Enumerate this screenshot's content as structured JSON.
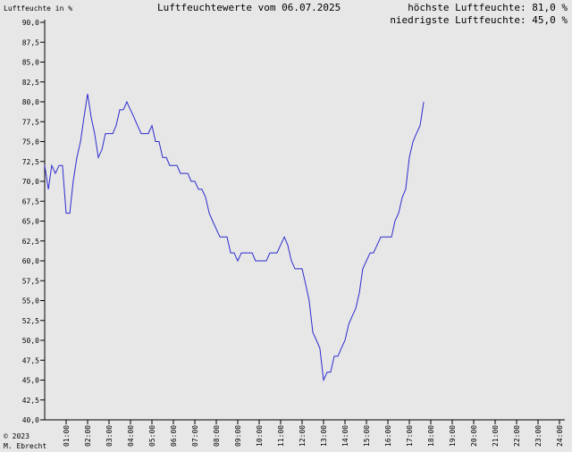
{
  "header": {
    "y_unit": "Luftfeuchte in %",
    "title": "Luftfeuchtewerte vom 06.07.2025",
    "max_label": "höchste Luftfeuchte: 81,0 %",
    "min_label": "niedrigste Luftfeuchte: 45,0 %"
  },
  "footer": {
    "copyright": "© 2023",
    "author": "M. Ebrecht"
  },
  "colors": {
    "background": "#e7e7e7",
    "line": "#2b2bd0",
    "axis": "#000000"
  },
  "chart_data": {
    "type": "line",
    "title": "Luftfeuchtewerte vom 06.07.2025",
    "ylabel": "Luftfeuchte in %",
    "xlabel": "",
    "ylim": [
      40,
      90
    ],
    "xlim": [
      0,
      24
    ],
    "y_ticks": [
      "90,0",
      "87,5",
      "85,0",
      "82,5",
      "80,0",
      "77,5",
      "75,0",
      "72,5",
      "70,0",
      "67,5",
      "65,0",
      "62,5",
      "60,0",
      "57,5",
      "55,0",
      "52,5",
      "50,0",
      "47,5",
      "45,0",
      "42,5",
      "40,0"
    ],
    "x_ticks": [
      "01:00",
      "02:00",
      "03:00",
      "04:00",
      "05:00",
      "06:00",
      "07:00",
      "08:00",
      "09:00",
      "10:00",
      "11:00",
      "12:00",
      "13:00",
      "14:00",
      "15:00",
      "16:00",
      "17:00",
      "18:00",
      "19:00",
      "20:00",
      "21:00",
      "22:00",
      "23:00",
      "24:00"
    ],
    "grid": false,
    "series": [
      {
        "x": [
          0.0,
          0.17,
          0.33,
          0.5,
          0.67,
          0.83,
          1.0,
          1.17,
          1.33,
          1.5,
          1.67,
          1.83,
          2.0,
          2.17,
          2.33,
          2.5,
          2.67,
          2.83,
          3.0,
          3.17,
          3.33,
          3.5,
          3.67,
          3.83,
          4.0,
          4.17,
          4.33,
          4.5,
          4.67,
          4.83,
          5.0,
          5.17,
          5.33,
          5.5,
          5.67,
          5.83,
          6.0,
          6.17,
          6.33,
          6.5,
          6.67,
          6.83,
          7.0,
          7.17,
          7.33,
          7.5,
          7.67,
          7.83,
          8.0,
          8.17,
          8.33,
          8.5,
          8.67,
          8.83,
          9.0,
          9.17,
          9.33,
          9.5,
          9.67,
          9.83,
          10.0,
          10.17,
          10.33,
          10.5,
          10.67,
          10.83,
          11.0,
          11.17,
          11.33,
          11.5,
          11.67,
          11.83,
          12.0,
          12.17,
          12.33,
          12.5,
          12.67,
          12.83,
          13.0,
          13.17,
          13.33,
          13.5,
          13.67,
          13.83,
          14.0,
          14.17,
          14.33,
          14.5,
          14.67,
          14.83,
          15.0,
          15.17,
          15.33,
          15.5,
          15.67,
          15.83,
          16.0,
          16.17,
          16.33,
          16.5,
          16.67,
          16.83,
          17.0,
          17.17,
          17.33,
          17.5,
          17.67
        ],
        "values": [
          72,
          69,
          72,
          71,
          72,
          72,
          66,
          66,
          70,
          73,
          75,
          78,
          81,
          78,
          76,
          73,
          74,
          76,
          76,
          76,
          77,
          79,
          79,
          80,
          79,
          78,
          77,
          76,
          76,
          76,
          77,
          75,
          75,
          73,
          73,
          72,
          72,
          72,
          71,
          71,
          71,
          70,
          70,
          69,
          69,
          68,
          66,
          65,
          64,
          63,
          63,
          63,
          61,
          61,
          60,
          61,
          61,
          61,
          61,
          60,
          60,
          60,
          60,
          61,
          61,
          61,
          62,
          63,
          62,
          60,
          59,
          59,
          59,
          57,
          55,
          51,
          50,
          49,
          45,
          46,
          46,
          48,
          48,
          49,
          50,
          52,
          53,
          54,
          56,
          59,
          60,
          61,
          61,
          62,
          63,
          63,
          63,
          63,
          65,
          66,
          68,
          69,
          73,
          75,
          76,
          77,
          80
        ]
      }
    ]
  }
}
